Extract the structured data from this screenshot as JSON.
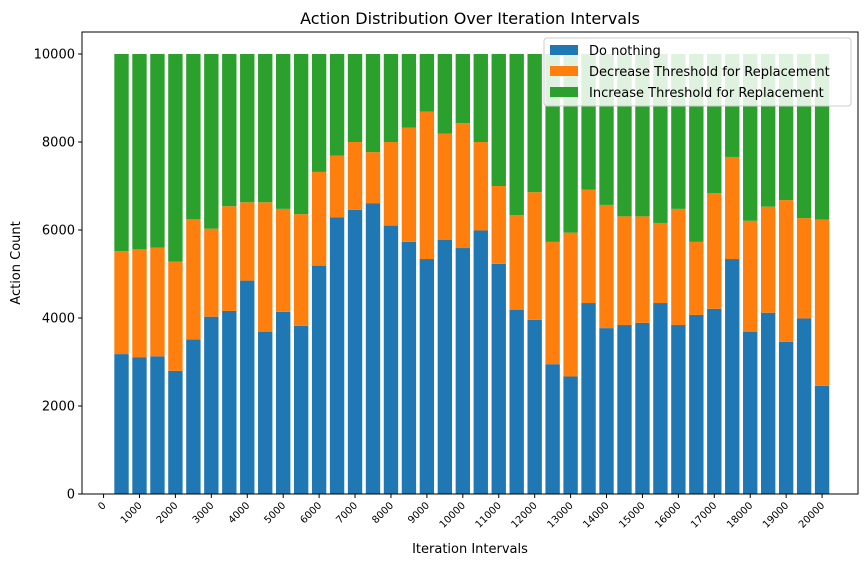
{
  "chart_data": {
    "type": "bar",
    "stacked": true,
    "title": "Action Distribution Over Iteration Intervals",
    "xlabel": "Iteration Intervals",
    "ylabel": "Action Count",
    "ylim": [
      0,
      10500
    ],
    "yticks": [
      0,
      2000,
      4000,
      6000,
      8000,
      10000
    ],
    "xlim": [
      -600,
      21000
    ],
    "xticks": [
      0,
      1000,
      2000,
      3000,
      4000,
      5000,
      6000,
      7000,
      8000,
      9000,
      10000,
      11000,
      12000,
      13000,
      14000,
      15000,
      16000,
      17000,
      18000,
      19000,
      20000
    ],
    "x": [
      500,
      1000,
      1500,
      2000,
      2500,
      3000,
      3500,
      4000,
      4500,
      5000,
      5500,
      6000,
      6500,
      7000,
      7500,
      8000,
      8500,
      9000,
      9500,
      10000,
      10500,
      11000,
      11500,
      12000,
      12500,
      13000,
      13500,
      14000,
      14500,
      15000,
      15500,
      16000,
      16500,
      17000,
      17500,
      18000,
      18500,
      19000,
      19500,
      20000
    ],
    "bar_width": 400,
    "legend_position": "top-right",
    "grid": false,
    "series": [
      {
        "name": "Do nothing",
        "color": "#1f77b4",
        "values": [
          3180,
          3110,
          3130,
          2800,
          3510,
          4030,
          4160,
          4850,
          3690,
          4140,
          3820,
          5190,
          6290,
          6460,
          6610,
          6100,
          5730,
          5340,
          5780,
          5590,
          5990,
          5230,
          4190,
          3960,
          2950,
          2670,
          4340,
          3770,
          3840,
          3890,
          4340,
          3840,
          4070,
          4210,
          5340,
          3690,
          4120,
          3460,
          3990,
          2460
        ]
      },
      {
        "name": "Decrease Threshold for Replacement",
        "color": "#ff7f0e",
        "values": [
          2340,
          2450,
          2470,
          2480,
          2740,
          2000,
          2380,
          1780,
          2940,
          2340,
          2540,
          2130,
          1400,
          1540,
          1160,
          1900,
          2600,
          3350,
          2410,
          2840,
          2010,
          1770,
          2150,
          2900,
          2780,
          3270,
          2580,
          2800,
          2470,
          2420,
          1820,
          2640,
          1660,
          2630,
          2320,
          2520,
          2410,
          3220,
          2280,
          3780
        ]
      },
      {
        "name": "Increase Threshold for Replacement",
        "color": "#2ca02c",
        "values": [
          4480,
          4440,
          4400,
          4720,
          3750,
          3970,
          3460,
          3370,
          3370,
          3520,
          3640,
          2680,
          2310,
          2000,
          2230,
          2000,
          1670,
          1310,
          1810,
          1570,
          2000,
          3000,
          3660,
          3140,
          4270,
          4060,
          3080,
          3430,
          3690,
          3690,
          3840,
          3520,
          4270,
          3160,
          2340,
          3790,
          3470,
          3320,
          3730,
          3760
        ]
      }
    ]
  }
}
